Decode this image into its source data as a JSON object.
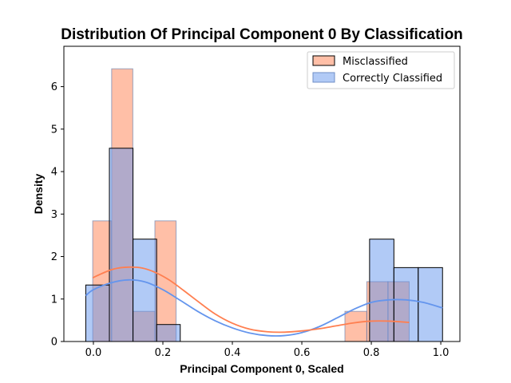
{
  "chart_data": {
    "type": "bar",
    "title": "Distribution Of Principal Component 0 By Classification",
    "xlabel": "Principal Component 0, Scaled",
    "ylabel": "Density",
    "xlim": [
      -0.085,
      1.055
    ],
    "ylim": [
      0,
      6.95
    ],
    "xticks": [
      "0.0",
      "0.2",
      "0.4",
      "0.6",
      "0.8",
      "1.0"
    ],
    "xtick_values": [
      0.0,
      0.2,
      0.4,
      0.6,
      0.8,
      1.0
    ],
    "yticks": [
      "0",
      "1",
      "2",
      "3",
      "4",
      "5",
      "6"
    ],
    "ytick_values": [
      0,
      1,
      2,
      3,
      4,
      5,
      6
    ],
    "grid": false,
    "legend_position": "top-right",
    "series": [
      {
        "name": "Correctly Classified",
        "color": "#6495ed",
        "bins": [
          {
            "x0": -0.022,
            "x1": 0.046,
            "density": 1.33
          },
          {
            "x0": 0.046,
            "x1": 0.114,
            "density": 4.55
          },
          {
            "x0": 0.114,
            "x1": 0.182,
            "density": 2.41
          },
          {
            "x0": 0.182,
            "x1": 0.25,
            "density": 0.4
          },
          {
            "x0": 0.795,
            "x1": 0.865,
            "density": 2.41
          },
          {
            "x0": 0.865,
            "x1": 0.935,
            "density": 1.74
          },
          {
            "x0": 0.935,
            "x1": 1.005,
            "density": 1.74
          }
        ],
        "kde": {
          "x": [
            -0.022,
            0.0,
            0.05,
            0.1,
            0.15,
            0.2,
            0.25,
            0.3,
            0.35,
            0.4,
            0.45,
            0.5,
            0.55,
            0.6,
            0.65,
            0.7,
            0.75,
            0.8,
            0.85,
            0.9,
            0.95,
            1.005
          ],
          "y": [
            1.08,
            1.22,
            1.38,
            1.45,
            1.4,
            1.22,
            0.97,
            0.71,
            0.49,
            0.32,
            0.2,
            0.14,
            0.14,
            0.21,
            0.35,
            0.55,
            0.76,
            0.92,
            0.98,
            0.98,
            0.92,
            0.79
          ]
        }
      },
      {
        "name": "Misclassified",
        "color": "#ff7f50",
        "bins": [
          {
            "x0": -0.002,
            "x1": 0.0525,
            "density": 2.84
          },
          {
            "x0": 0.0525,
            "x1": 0.1135,
            "density": 6.42
          },
          {
            "x0": 0.1135,
            "x1": 0.177,
            "density": 0.71
          },
          {
            "x0": 0.177,
            "x1": 0.238,
            "density": 2.84
          },
          {
            "x0": 0.724,
            "x1": 0.787,
            "density": 0.71
          },
          {
            "x0": 0.787,
            "x1": 0.848,
            "density": 1.41
          },
          {
            "x0": 0.848,
            "x1": 0.909,
            "density": 1.41
          }
        ],
        "kde": {
          "x": [
            -0.002,
            0.03,
            0.06,
            0.1,
            0.14,
            0.18,
            0.22,
            0.26,
            0.3,
            0.35,
            0.4,
            0.45,
            0.5,
            0.55,
            0.6,
            0.65,
            0.7,
            0.75,
            0.8,
            0.85,
            0.909
          ],
          "y": [
            1.5,
            1.62,
            1.71,
            1.75,
            1.73,
            1.62,
            1.44,
            1.2,
            0.95,
            0.65,
            0.43,
            0.29,
            0.23,
            0.22,
            0.25,
            0.3,
            0.37,
            0.44,
            0.48,
            0.48,
            0.45
          ]
        }
      }
    ],
    "legend": [
      {
        "label": "Misclassified",
        "color": "#ff7f50"
      },
      {
        "label": "Correctly Classified",
        "color": "#6495ed"
      }
    ]
  }
}
